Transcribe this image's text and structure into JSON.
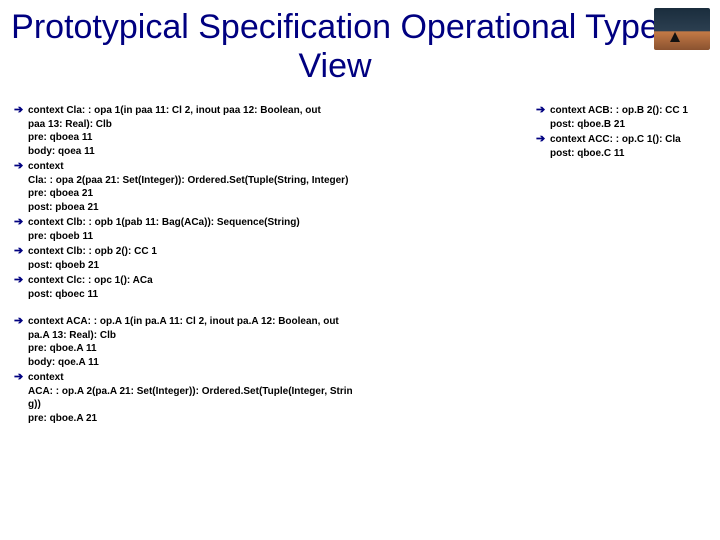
{
  "title": "Prototypical Specification Operational Type View",
  "left": {
    "group1": [
      {
        "lead": "context Cla: : opa 1(in paa 11: Cl 2, inout paa 12: Boolean, out",
        "cont": [
          "paa 13: Real): Clb",
          "pre: qboea 11",
          "body: qoea 11"
        ]
      },
      {
        "lead": "context",
        "cont": [
          "Cla: : opa 2(paa 21: Set(Integer)): Ordered.Set(Tuple(String, Integer)",
          "pre: qboea 21",
          "post: pboea 21"
        ]
      },
      {
        "lead": "context Clb: : opb 1(pab 11: Bag(ACa)): Sequence(String)",
        "cont": [
          "pre: qboeb 11"
        ]
      },
      {
        "lead": "context Clb: : opb 2(): CC 1",
        "cont": [
          "post: qboeb 21"
        ]
      },
      {
        "lead": "context Clc: : opc 1(): ACa",
        "cont": [
          "post: qboec 11"
        ]
      }
    ],
    "group2": [
      {
        "lead": "context ACA: : op.A 1(in pa.A 11: Cl 2, inout pa.A 12: Boolean, out",
        "cont": [
          "pa.A 13: Real): Clb",
          "pre: qboe.A 11",
          "body: qoe.A 11"
        ]
      },
      {
        "lead": "context",
        "cont": [
          "ACA: : op.A 2(pa.A 21: Set(Integer)): Ordered.Set(Tuple(Integer, Strin",
          "g))",
          "pre: qboe.A 21"
        ]
      }
    ]
  },
  "right": {
    "items": [
      {
        "lead": "context ACB: : op.B 2(): CC 1",
        "cont": [
          "post: qboe.B 21"
        ]
      },
      {
        "lead": "context ACC: : op.C 1(): Cla",
        "cont": [
          "post: qboe.C 11"
        ]
      }
    ]
  },
  "colors": {
    "title": "#000080",
    "text": "#000000",
    "background": "#ffffff",
    "arrow": "#000080"
  }
}
